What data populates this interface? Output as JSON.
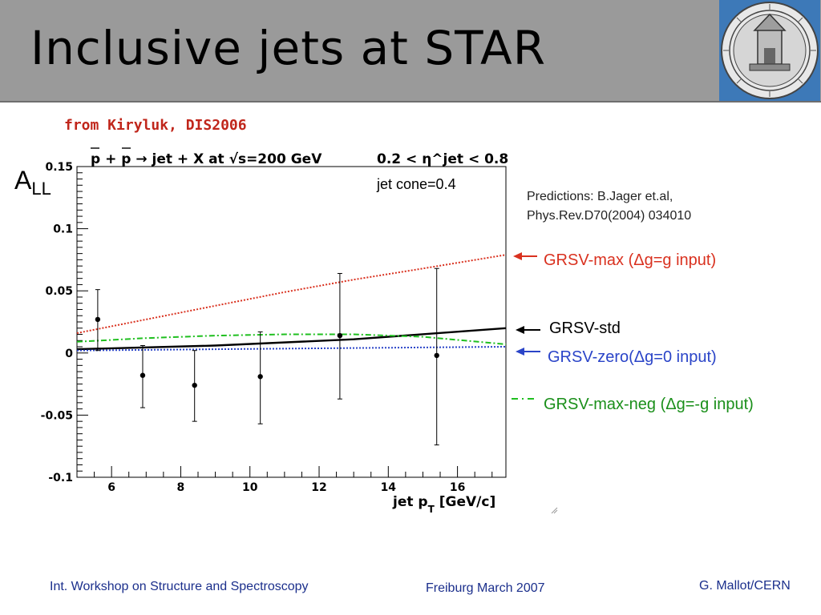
{
  "slide": {
    "title": "Inclusive jets at STAR",
    "source_note": "from Kiryluk, DIS2006"
  },
  "footer": {
    "left": "Int. Workshop on Structure and Spectroscopy",
    "center": "Freiburg March 2007",
    "right": "G. Mallot/CERN"
  },
  "colors": {
    "header_bg": "#9a9a9a",
    "source_note": "#c0261b",
    "footer_text": "#1b2f8c",
    "grsv_max": "#d9311f",
    "grsv_std": "#000000",
    "grsv_zero": "#2a44c8",
    "grsv_max_neg": "#1fbf1f"
  },
  "logo": {
    "name": "university-seal-icon"
  },
  "chart_data": {
    "type": "scatter",
    "title": "p + p → jet + X at √s=200 GeV",
    "title_right": "0.2 < η^jet < 0.8",
    "annotation": "jet cone=0.4",
    "ylabel": "A",
    "ylabel_sub": "LL",
    "xlabel": "jet p",
    "xlabel_sub": "T",
    "xlabel_unit": "[GeV/c]",
    "xlim": [
      5.0,
      17.4
    ],
    "ylim": [
      -0.1,
      0.15
    ],
    "xticks": [
      6,
      8,
      10,
      12,
      14,
      16
    ],
    "yticks": [
      -0.1,
      -0.05,
      0,
      0.05,
      0.1,
      0.15
    ],
    "ytick_labels": [
      "-0.1",
      "-0.05",
      "0",
      "0.05",
      "0.1",
      "0.15"
    ],
    "grid": false,
    "predictions_note_line1": "Predictions:  B.Jager et.al,",
    "predictions_note_line2": "Phys.Rev.D70(2004) 034010",
    "points": [
      {
        "x": 5.6,
        "y": 0.027,
        "err_lo": 0.025,
        "err_hi": 0.024
      },
      {
        "x": 6.9,
        "y": -0.018,
        "err_lo": 0.026,
        "err_hi": 0.024
      },
      {
        "x": 8.4,
        "y": -0.026,
        "err_lo": 0.029,
        "err_hi": 0.028
      },
      {
        "x": 10.3,
        "y": -0.019,
        "err_lo": 0.038,
        "err_hi": 0.036
      },
      {
        "x": 12.6,
        "y": 0.014,
        "err_lo": 0.051,
        "err_hi": 0.05
      },
      {
        "x": 15.4,
        "y": -0.002,
        "err_lo": 0.072,
        "err_hi": 0.07
      }
    ],
    "series": [
      {
        "name": "GRSV-max (Δg=g input)",
        "style": "dotted",
        "x": [
          5.0,
          7.0,
          9.0,
          11.0,
          13.0,
          15.0,
          17.4
        ],
        "values": [
          0.016,
          0.027,
          0.038,
          0.049,
          0.059,
          0.068,
          0.079
        ]
      },
      {
        "name": "GRSV-std",
        "style": "solid",
        "x": [
          5.0,
          9.0,
          13.0,
          17.4
        ],
        "values": [
          0.003,
          0.006,
          0.011,
          0.02
        ]
      },
      {
        "name": "GRSV-zero(Δg=0 input)",
        "style": "dotted",
        "x": [
          5.0,
          9.0,
          13.0,
          17.4
        ],
        "values": [
          0.002,
          0.003,
          0.004,
          0.005
        ]
      },
      {
        "name": "GRSV-max-neg (Δg=-g input)",
        "style": "dashdot",
        "x": [
          5.0,
          7.0,
          9.0,
          11.0,
          13.0,
          15.0,
          17.4
        ],
        "values": [
          0.009,
          0.012,
          0.014,
          0.015,
          0.015,
          0.013,
          0.007
        ]
      }
    ]
  }
}
